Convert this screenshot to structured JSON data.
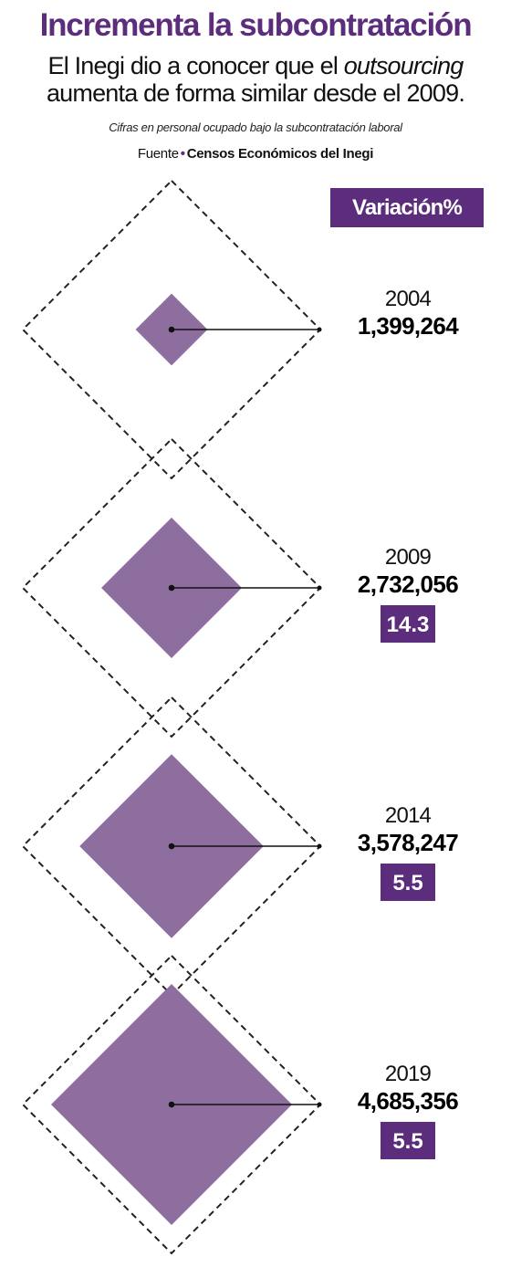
{
  "header": {
    "title": "Incrementa la subcontratación",
    "subtitle_line1_part1": "El Inegi dio a conocer que el ",
    "subtitle_line1_em": "outsourcing",
    "subtitle_line2": "aumenta de forma similar desde el 2009.",
    "note": "Cifras en personal ocupado bajo la subcontratación laboral",
    "source_label": "Fuente",
    "source_name": "Censos Económicos del Inegi"
  },
  "legend": {
    "label": "Variación%"
  },
  "colors": {
    "accent": "#5b2d7c",
    "diamond_fill": "#8e6e9e",
    "outline": "#222222"
  },
  "chart_data": {
    "type": "area",
    "unit": "personal ocupado",
    "points": [
      {
        "year": "2004",
        "value": 1399264,
        "label": "1,399,264",
        "variation": null
      },
      {
        "year": "2009",
        "value": 2732056,
        "label": "2,732,056",
        "variation": "14.3"
      },
      {
        "year": "2014",
        "value": 3578247,
        "label": "3,578,247",
        "variation": "5.5"
      },
      {
        "year": "2019",
        "value": 4685356,
        "label": "4,685,356",
        "variation": "5.5"
      }
    ]
  }
}
